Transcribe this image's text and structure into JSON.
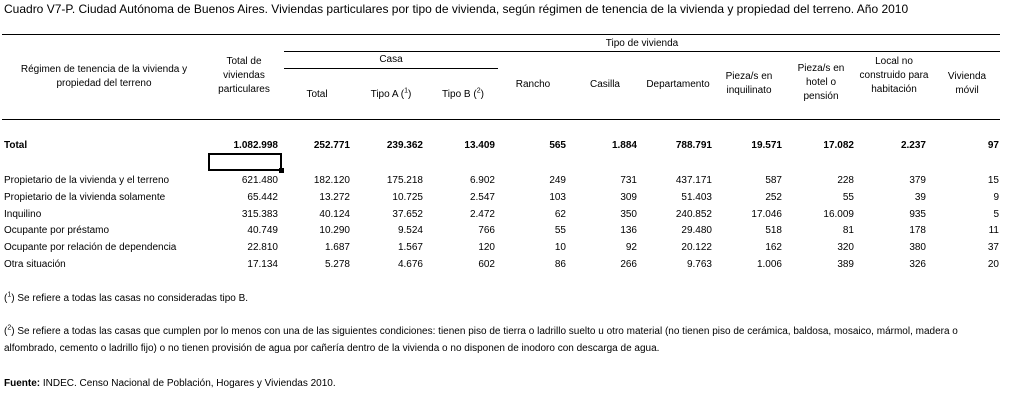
{
  "title": "Cuadro V7-P. Ciudad Autónoma de Buenos Aires. Viviendas particulares por tipo de vivienda, según régimen de tenencia de la vivienda y propiedad del terreno. Año 2010",
  "header": {
    "regimen": "Régimen de tenencia de la vivienda y propiedad del terreno",
    "total_viviendas": "Total de viviendas particulares",
    "tipo_vivienda": "Tipo de vivienda",
    "casa": "Casa",
    "casa_total": "Total",
    "tipo_a": "Tipo A (",
    "tipo_a_sup": "1",
    "tipo_b": "Tipo B (",
    "tipo_b_sup": "2",
    "close_paren": ")",
    "rancho": "Rancho",
    "casilla": "Casilla",
    "departamento": "Departamento",
    "pieza_inquilinato": "Pieza/s en inquilinato",
    "pieza_hotel": "Pieza/s en hotel o pensión",
    "local": "Local no construido para habitación",
    "movil": "Vivienda móvil"
  },
  "total_row": {
    "label": "Total",
    "values": [
      "1.082.998",
      "252.771",
      "239.362",
      "13.409",
      "565",
      "1.884",
      "788.791",
      "19.571",
      "17.082",
      "2.237",
      "97"
    ]
  },
  "rows": [
    {
      "label": "Propietario de la vivienda y el terreno",
      "values": [
        "621.480",
        "182.120",
        "175.218",
        "6.902",
        "249",
        "731",
        "437.171",
        "587",
        "228",
        "379",
        "15"
      ]
    },
    {
      "label": "Propietario de la vivienda solamente",
      "values": [
        "65.442",
        "13.272",
        "10.725",
        "2.547",
        "103",
        "309",
        "51.403",
        "252",
        "55",
        "39",
        "9"
      ]
    },
    {
      "label": "Inquilino",
      "values": [
        "315.383",
        "40.124",
        "37.652",
        "2.472",
        "62",
        "350",
        "240.852",
        "17.046",
        "16.009",
        "935",
        "5"
      ]
    },
    {
      "label": "Ocupante por préstamo",
      "values": [
        "40.749",
        "10.290",
        "9.524",
        "766",
        "55",
        "136",
        "29.480",
        "518",
        "81",
        "178",
        "11"
      ]
    },
    {
      "label": "Ocupante por relación de dependencia",
      "values": [
        "22.810",
        "1.687",
        "1.567",
        "120",
        "10",
        "92",
        "20.122",
        "162",
        "320",
        "380",
        "37"
      ]
    },
    {
      "label": "Otra situación",
      "values": [
        "17.134",
        "5.278",
        "4.676",
        "602",
        "86",
        "266",
        "9.763",
        "1.006",
        "389",
        "326",
        "20"
      ]
    }
  ],
  "notes": {
    "n1_sup": "1",
    "n1_text": "Se refiere a todas las casas no consideradas tipo B.",
    "n2_sup": "2",
    "n2_text": "Se refiere a todas las casas que cumplen por lo menos con una de las siguientes condiciones: tienen piso de tierra o ladrillo suelto u otro material (no tienen piso de cerámica, baldosa, mosaico, mármol, madera o alfombrado, cemento o ladrillo fijo) o no tienen provisión de agua por cañería dentro de la vivienda o no disponen de inodoro con descarga de agua.",
    "fuente_label": "Fuente:",
    "fuente_text": " INDEC. Censo Nacional de Población, Hogares y Viviendas 2010."
  }
}
